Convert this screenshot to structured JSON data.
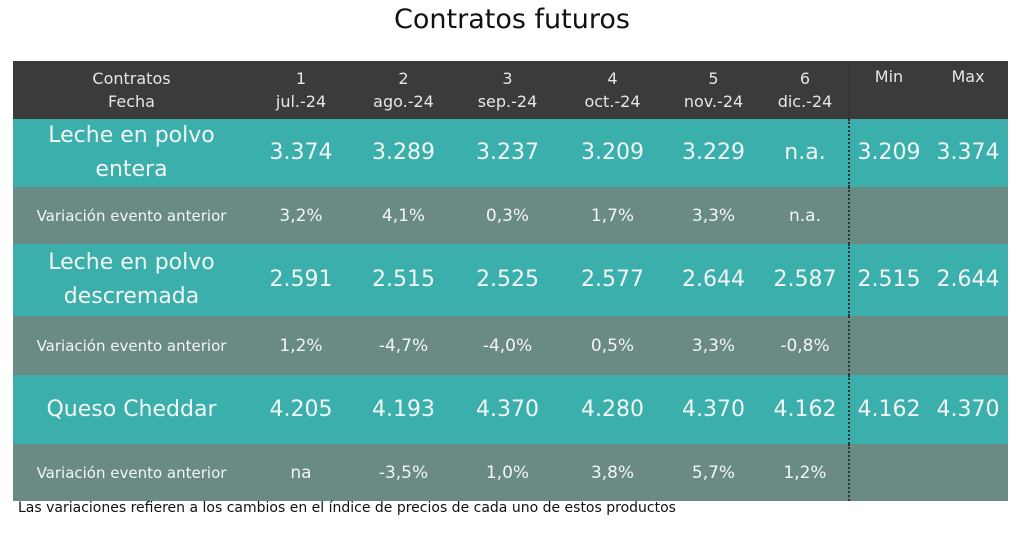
{
  "title": "Contratos futuros",
  "header": {
    "label1": "Contratos",
    "label2": "Fecha",
    "contracts": [
      "1",
      "2",
      "3",
      "4",
      "5",
      "6"
    ],
    "dates": [
      "jul.-24",
      "ago.-24",
      "sep.-24",
      "oct.-24",
      "nov.-24",
      "dic.-24"
    ],
    "min": "Min",
    "max": "Max"
  },
  "rows": [
    {
      "product": "Leche en polvo entera",
      "values": [
        "3.374",
        "3.289",
        "3.237",
        "3.209",
        "3.229",
        "n.a."
      ],
      "min": "3.209",
      "max": "3.374",
      "variation_label": "Variación evento anterior",
      "variations": [
        "3,2%",
        "4,1%",
        "0,3%",
        "1,7%",
        "3,3%",
        "n.a."
      ]
    },
    {
      "product": "Leche en polvo descremada",
      "values": [
        "2.591",
        "2.515",
        "2.525",
        "2.577",
        "2.644",
        "2.587"
      ],
      "min": "2.515",
      "max": "2.644",
      "variation_label": "Variación evento anterior",
      "variations": [
        "1,2%",
        "-4,7%",
        "-4,0%",
        "0,5%",
        "3,3%",
        "-0,8%"
      ]
    },
    {
      "product": "Queso Cheddar",
      "values": [
        "4.205",
        "4.193",
        "4.370",
        "4.280",
        "4.370",
        "4.162"
      ],
      "min": "4.162",
      "max": "4.370",
      "variation_label": "Variación evento anterior",
      "variations": [
        "na",
        "-3,5%",
        "1,0%",
        "3,8%",
        "5,7%",
        "1,2%"
      ]
    }
  ],
  "note": "Las variaciones refieren a los cambios en el índice de precios de cada uno de estos productos"
}
